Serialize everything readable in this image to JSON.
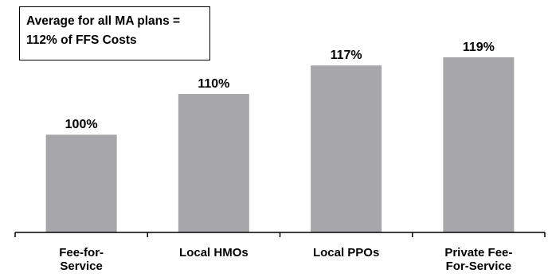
{
  "chart_data": {
    "type": "bar",
    "title": "",
    "xlabel": "",
    "ylabel": "",
    "categories": [
      [
        "Fee-for-",
        "Service"
      ],
      [
        "Local HMOs"
      ],
      [
        "Local PPOs"
      ],
      [
        "Private Fee-",
        "For-Service"
      ]
    ],
    "values": [
      100,
      110,
      117,
      119
    ],
    "value_labels": [
      "100%",
      "110%",
      "117%",
      "119%"
    ],
    "ylim": [
      0,
      119
    ],
    "bar_color": "#a7a7ab",
    "grid": false,
    "annotation": {
      "lines": [
        "Average for all MA plans =",
        "112% of FFS Costs"
      ]
    }
  }
}
